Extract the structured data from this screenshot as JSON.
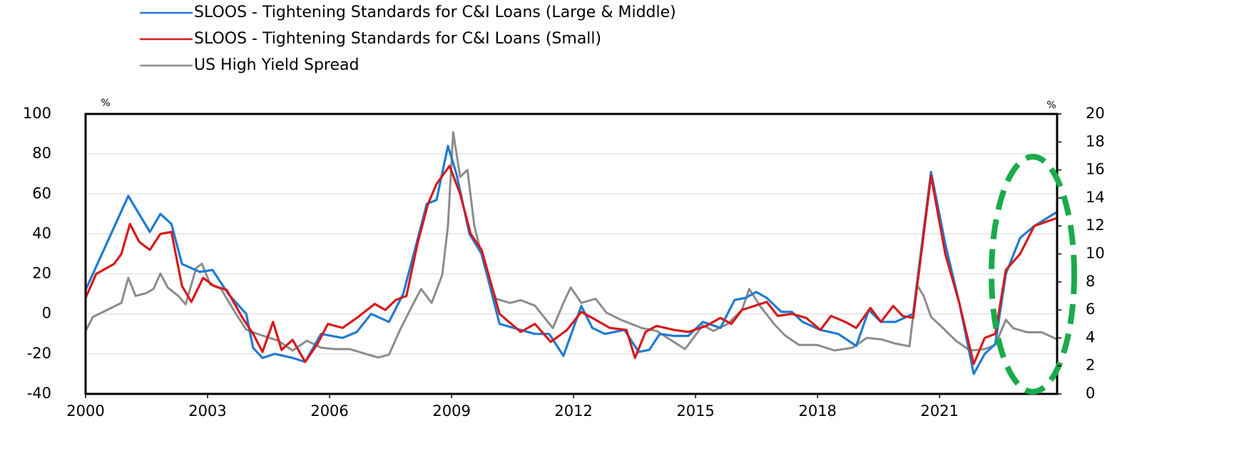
{
  "chart_data": {
    "type": "line",
    "xlim": [
      2000,
      2023.89
    ],
    "xticks": [
      2000,
      2003,
      2006,
      2009,
      2012,
      2015,
      2018,
      2021
    ],
    "ylim": [
      -40,
      100
    ],
    "yticks": [
      -40,
      -20,
      0,
      20,
      40,
      60,
      80,
      100
    ],
    "y2lim": [
      0,
      20
    ],
    "y2ticks": [
      0,
      2,
      4,
      6,
      8,
      10,
      12,
      14,
      16,
      18,
      20
    ],
    "ylabel": "%",
    "y2label": "%",
    "grid": true,
    "series": [
      {
        "name": "SLOOS - Tightening Standards for C&I Loans (Large & Middle)",
        "color": "#1f7bd1",
        "x": [
          2000.0,
          2001.05,
          2001.58,
          2001.84,
          2002.11,
          2002.37,
          2002.81,
          2003.12,
          2003.51,
          2003.95,
          2004.12,
          2004.35,
          2004.65,
          2005.09,
          2005.4,
          2005.79,
          2006.32,
          2006.67,
          2007.02,
          2007.46,
          2007.81,
          2008.07,
          2008.39,
          2008.63,
          2008.91,
          2009.12,
          2009.44,
          2009.74,
          2010.18,
          2010.7,
          2011.05,
          2011.4,
          2011.75,
          2012.19,
          2012.46,
          2012.77,
          2013.25,
          2013.6,
          2013.86,
          2014.12,
          2014.47,
          2014.82,
          2015.18,
          2015.61,
          2015.96,
          2016.23,
          2016.49,
          2016.75,
          2017.11,
          2017.37,
          2017.63,
          2018.07,
          2018.51,
          2018.95,
          2019.26,
          2019.56,
          2019.91,
          2020.35,
          2020.79,
          2021.14,
          2021.49,
          2021.84,
          2022.11,
          2022.37,
          2022.63,
          2022.98,
          2023.33,
          2023.89
        ],
        "values": [
          12,
          59,
          41,
          50,
          45,
          25,
          21,
          22,
          10,
          0,
          -17,
          -22,
          -20,
          -22,
          -24,
          -10,
          -12,
          -9,
          0,
          -4,
          10,
          30,
          55,
          57,
          84,
          70,
          40,
          30,
          -5,
          -8,
          -10,
          -10,
          -21,
          4,
          -7,
          -10,
          -8,
          -19,
          -18,
          -10,
          -11,
          -11,
          -4,
          -7,
          7,
          8,
          11,
          8,
          1,
          1,
          -4,
          -8,
          -10,
          -16,
          2,
          -4,
          -4,
          0,
          71,
          35,
          5,
          -30,
          -20,
          -15,
          20,
          38,
          44,
          51
        ]
      },
      {
        "name": "SLOOS - Tightening Standards for C&I Loans (Small)",
        "color": "#d7191c",
        "x": [
          2000.0,
          2000.26,
          2000.7,
          2000.88,
          2001.09,
          2001.32,
          2001.58,
          2001.84,
          2002.11,
          2002.37,
          2002.6,
          2002.89,
          2003.16,
          2003.47,
          2003.86,
          2004.12,
          2004.35,
          2004.61,
          2004.82,
          2005.09,
          2005.4,
          2005.7,
          2005.96,
          2006.32,
          2006.67,
          2007.11,
          2007.37,
          2007.63,
          2007.89,
          2008.16,
          2008.42,
          2008.63,
          2008.95,
          2009.21,
          2009.47,
          2009.74,
          2010.18,
          2010.7,
          2011.05,
          2011.44,
          2011.84,
          2012.19,
          2012.46,
          2012.89,
          2013.3,
          2013.51,
          2013.77,
          2014.04,
          2014.47,
          2014.82,
          2015.26,
          2015.61,
          2015.88,
          2016.14,
          2016.75,
          2017.02,
          2017.37,
          2017.72,
          2018.07,
          2018.33,
          2018.68,
          2018.95,
          2019.3,
          2019.56,
          2019.86,
          2020.09,
          2020.35,
          2020.79,
          2021.14,
          2021.49,
          2021.84,
          2022.11,
          2022.37,
          2022.63,
          2022.98,
          2023.33,
          2023.89
        ],
        "values": [
          8,
          20,
          25,
          30,
          45,
          36,
          32,
          40,
          41,
          14,
          6,
          18,
          14,
          12,
          -2,
          -10,
          -19,
          -4,
          -18,
          -13,
          -24,
          -15,
          -5,
          -7,
          -2,
          5,
          2,
          7,
          9,
          35,
          55,
          65,
          74,
          60,
          40,
          32,
          0,
          -9,
          -5,
          -14,
          -8,
          1,
          -2,
          -7,
          -8,
          -22,
          -9,
          -6,
          -8,
          -9,
          -6,
          -2,
          -5,
          2,
          6,
          -1,
          0,
          -2,
          -8,
          -1,
          -4,
          -7,
          3,
          -4,
          4,
          -1,
          -2,
          69,
          30,
          5,
          -25,
          -12,
          -10,
          22,
          30,
          44,
          48
        ]
      },
      {
        "name": "US High Yield Spread",
        "color": "#8c8c8c",
        "axis": "y2",
        "x": [
          2000.0,
          2000.18,
          2000.53,
          2000.88,
          2001.05,
          2001.23,
          2001.49,
          2001.67,
          2001.84,
          2002.02,
          2002.28,
          2002.46,
          2002.72,
          2002.86,
          2003.07,
          2003.33,
          2003.68,
          2003.95,
          2004.21,
          2004.74,
          2005.09,
          2005.44,
          2005.79,
          2006.14,
          2006.49,
          2006.84,
          2007.19,
          2007.46,
          2007.72,
          2007.98,
          2008.25,
          2008.51,
          2008.77,
          2008.91,
          2009.04,
          2009.21,
          2009.39,
          2009.56,
          2009.82,
          2010.09,
          2010.44,
          2010.7,
          2011.05,
          2011.49,
          2011.75,
          2011.93,
          2012.19,
          2012.54,
          2012.81,
          2013.16,
          2013.68,
          2014.04,
          2014.47,
          2014.74,
          2015.18,
          2015.44,
          2015.79,
          2016.14,
          2016.32,
          2016.58,
          2016.93,
          2017.19,
          2017.54,
          2017.98,
          2018.42,
          2018.86,
          2019.21,
          2019.56,
          2019.91,
          2020.26,
          2020.44,
          2020.61,
          2020.79,
          2021.05,
          2021.4,
          2021.75,
          2022.11,
          2022.37,
          2022.63,
          2022.81,
          2023.16,
          2023.51,
          2023.89
        ],
        "values": [
          4.5,
          5.5,
          6,
          6.5,
          8.3,
          7,
          7.2,
          7.5,
          8.6,
          7.6,
          7,
          6.4,
          9,
          9.3,
          7.8,
          7.5,
          5.8,
          4.6,
          4.3,
          3.8,
          3.1,
          3.8,
          3.3,
          3.2,
          3.2,
          2.9,
          2.6,
          2.8,
          4.5,
          6,
          7.5,
          6.5,
          8.5,
          12,
          18.7,
          15.5,
          16,
          12,
          9,
          6.8,
          6.5,
          6.7,
          6.3,
          4.7,
          6.5,
          7.6,
          6.5,
          6.8,
          5.8,
          5.3,
          4.7,
          4.5,
          3.7,
          3.2,
          4.9,
          4.5,
          5,
          6,
          7.5,
          6.3,
          5,
          4.2,
          3.5,
          3.5,
          3.1,
          3.3,
          4,
          3.9,
          3.6,
          3.4,
          7.8,
          7,
          5.5,
          4.8,
          3.8,
          3.1,
          3.2,
          3.5,
          5.3,
          4.7,
          4.4,
          4.4,
          3.9
        ]
      }
    ]
  }
}
